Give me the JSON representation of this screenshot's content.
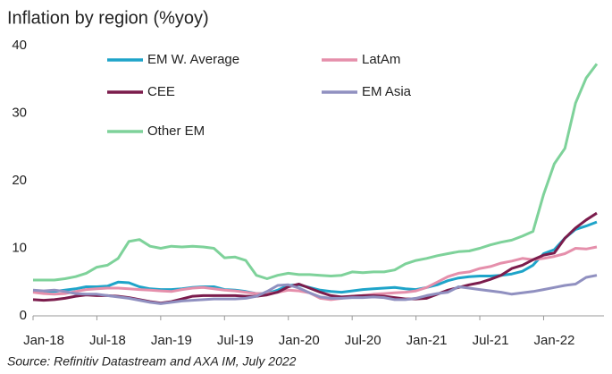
{
  "chart_data": {
    "type": "line",
    "title": "Inflation by region (%yoy)",
    "source": "Source: Refinitiv Datastream and AXA IM, July 2022",
    "categories": [
      "Jan-18",
      null,
      null,
      null,
      null,
      null,
      "Jul-18",
      null,
      null,
      null,
      null,
      null,
      "Jan-19",
      null,
      null,
      null,
      null,
      null,
      "Jul-19",
      null,
      null,
      null,
      null,
      null,
      "Jan-20",
      null,
      null,
      null,
      null,
      null,
      "Jul-20",
      null,
      null,
      null,
      null,
      null,
      "Jan-21",
      null,
      null,
      null,
      null,
      null,
      "Jul-21",
      null,
      null,
      null,
      null,
      null,
      "Jan-22",
      null,
      null,
      null,
      null,
      null
    ],
    "ylim": [
      0,
      40
    ],
    "yticks": [
      0,
      10,
      20,
      30,
      40
    ],
    "grid": false,
    "series": [
      {
        "name": "EM W. Average",
        "color": "#1ea4c9",
        "values": [
          3.7,
          3.6,
          3.6,
          3.8,
          4.0,
          4.3,
          4.3,
          4.4,
          5.0,
          4.9,
          4.3,
          4.0,
          3.9,
          3.9,
          4.0,
          4.2,
          4.3,
          4.3,
          3.9,
          3.8,
          3.6,
          3.3,
          3.3,
          3.8,
          4.5,
          4.6,
          4.2,
          3.8,
          3.6,
          3.5,
          3.7,
          3.9,
          4.0,
          4.1,
          4.2,
          4.0,
          3.9,
          4.2,
          4.6,
          5.2,
          5.6,
          5.8,
          5.9,
          5.9,
          6.0,
          6.2,
          6.6,
          7.5,
          9.2,
          9.8,
          11.5,
          12.8,
          13.3,
          13.9
        ]
      },
      {
        "name": "LatAm",
        "color": "#e58fab",
        "values": [
          3.5,
          3.3,
          3.2,
          3.3,
          3.6,
          3.9,
          4.0,
          4.1,
          4.1,
          4.0,
          3.9,
          3.8,
          3.7,
          3.6,
          3.9,
          4.1,
          4.2,
          4.0,
          3.8,
          3.7,
          3.5,
          3.3,
          3.3,
          3.5,
          3.8,
          3.7,
          3.4,
          2.6,
          2.4,
          2.6,
          2.9,
          3.0,
          3.2,
          3.3,
          3.4,
          3.5,
          3.7,
          4.2,
          5.0,
          5.8,
          6.3,
          6.5,
          7.0,
          7.3,
          7.8,
          8.1,
          8.5,
          8.3,
          8.5,
          8.8,
          9.2,
          10.0,
          9.9,
          10.2
        ]
      },
      {
        "name": "CEE",
        "color": "#7b1c4c",
        "values": [
          2.4,
          2.3,
          2.4,
          2.6,
          2.9,
          3.1,
          3.0,
          3.0,
          2.9,
          2.7,
          2.4,
          2.1,
          1.9,
          2.1,
          2.5,
          2.9,
          3.0,
          3.0,
          3.0,
          3.0,
          2.9,
          2.9,
          3.1,
          3.5,
          4.3,
          4.7,
          4.1,
          3.5,
          3.0,
          2.8,
          2.9,
          3.0,
          3.0,
          2.9,
          2.7,
          2.5,
          2.5,
          2.6,
          3.2,
          3.8,
          4.2,
          4.6,
          4.9,
          5.4,
          6.0,
          7.0,
          7.5,
          8.3,
          9.0,
          9.3,
          11.5,
          13.0,
          14.2,
          15.2
        ]
      },
      {
        "name": "EM Asia",
        "color": "#9090c0",
        "values": [
          3.8,
          3.7,
          3.8,
          3.6,
          3.3,
          3.2,
          3.2,
          3.0,
          2.8,
          2.6,
          2.3,
          2.0,
          1.8,
          2.0,
          2.2,
          2.3,
          2.4,
          2.5,
          2.5,
          2.5,
          2.6,
          2.9,
          3.6,
          4.5,
          4.6,
          4.1,
          3.4,
          2.8,
          2.6,
          2.6,
          2.7,
          2.7,
          2.8,
          2.7,
          2.4,
          2.4,
          2.6,
          3.0,
          3.3,
          3.5,
          4.3,
          4.1,
          3.9,
          3.7,
          3.5,
          3.2,
          3.4,
          3.6,
          3.9,
          4.2,
          4.5,
          4.7,
          5.7,
          6.0
        ]
      },
      {
        "name": "Other EM",
        "color": "#7ed29a",
        "values": [
          5.3,
          5.3,
          5.3,
          5.5,
          5.8,
          6.3,
          7.2,
          7.5,
          8.5,
          11.0,
          11.3,
          10.3,
          10.0,
          10.3,
          10.2,
          10.3,
          10.2,
          10.0,
          8.6,
          8.7,
          8.2,
          6.0,
          5.5,
          6.0,
          6.3,
          6.1,
          6.1,
          6.0,
          5.9,
          6.0,
          6.5,
          6.4,
          6.5,
          6.5,
          6.8,
          7.7,
          8.2,
          8.5,
          8.9,
          9.2,
          9.5,
          9.6,
          10.0,
          10.5,
          10.9,
          11.2,
          11.8,
          12.5,
          18.0,
          22.5,
          24.8,
          31.5,
          35.2,
          37.3
        ]
      }
    ]
  }
}
